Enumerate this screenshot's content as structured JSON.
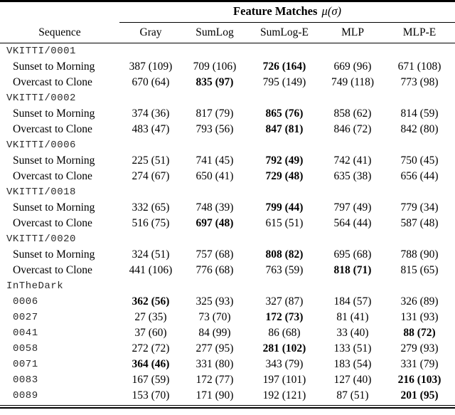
{
  "colors": {
    "background": "#ffffff",
    "text": "#000000",
    "rule": "#000000"
  },
  "table": {
    "group_header": {
      "title": "Feature Matches",
      "math": "μ(σ)"
    },
    "sequence_header": "Sequence",
    "columns": [
      "Gray",
      "SumLog",
      "SumLog-E",
      "MLP",
      "MLP-E"
    ],
    "rows": [
      {
        "kind": "section",
        "label": "VKITTI/0001"
      },
      {
        "kind": "data",
        "label": "Sunset to Morning",
        "mono": false,
        "cells": [
          "387 (109)",
          "709 (106)",
          "726 (164)",
          "669 (96)",
          "671 (108)"
        ],
        "bold": [
          2
        ]
      },
      {
        "kind": "data",
        "label": "Overcast to Clone",
        "mono": false,
        "cells": [
          "670 (64)",
          "835 (97)",
          "795 (149)",
          "749 (118)",
          "773 (98)"
        ],
        "bold": [
          1
        ]
      },
      {
        "kind": "section",
        "label": "VKITTI/0002"
      },
      {
        "kind": "data",
        "label": "Sunset to Morning",
        "mono": false,
        "cells": [
          "374 (36)",
          "817 (79)",
          "865 (76)",
          "858 (62)",
          "814 (59)"
        ],
        "bold": [
          2
        ]
      },
      {
        "kind": "data",
        "label": "Overcast to Clone",
        "mono": false,
        "cells": [
          "483 (47)",
          "793 (56)",
          "847 (81)",
          "846 (72)",
          "842 (80)"
        ],
        "bold": [
          2
        ]
      },
      {
        "kind": "section",
        "label": "VKITTI/0006"
      },
      {
        "kind": "data",
        "label": "Sunset to Morning",
        "mono": false,
        "cells": [
          "225 (51)",
          "741 (45)",
          "792 (49)",
          "742 (41)",
          "750 (45)"
        ],
        "bold": [
          2
        ]
      },
      {
        "kind": "data",
        "label": "Overcast to Clone",
        "mono": false,
        "cells": [
          "274 (67)",
          "650 (41)",
          "729 (48)",
          "635 (38)",
          "656 (44)"
        ],
        "bold": [
          2
        ]
      },
      {
        "kind": "section",
        "label": "VKITTI/0018"
      },
      {
        "kind": "data",
        "label": "Sunset to Morning",
        "mono": false,
        "cells": [
          "332 (65)",
          "748 (39)",
          "799 (44)",
          "797 (49)",
          "779 (34)"
        ],
        "bold": [
          2
        ]
      },
      {
        "kind": "data",
        "label": "Overcast to Clone",
        "mono": false,
        "cells": [
          "516 (75)",
          "697 (48)",
          "615 (51)",
          "564 (44)",
          "587 (48)"
        ],
        "bold": [
          1
        ]
      },
      {
        "kind": "section",
        "label": "VKITTI/0020"
      },
      {
        "kind": "data",
        "label": "Sunset to Morning",
        "mono": false,
        "cells": [
          "324 (51)",
          "757 (68)",
          "808 (82)",
          "695 (68)",
          "788 (90)"
        ],
        "bold": [
          2
        ]
      },
      {
        "kind": "data",
        "label": "Overcast to Clone",
        "mono": false,
        "cells": [
          "441 (106)",
          "776 (68)",
          "763 (59)",
          "818 (71)",
          "815 (65)"
        ],
        "bold": [
          3
        ]
      },
      {
        "kind": "section",
        "label": "InTheDark"
      },
      {
        "kind": "data",
        "label": "0006",
        "mono": true,
        "cells": [
          "362 (56)",
          "325 (93)",
          "327 (87)",
          "184 (57)",
          "326 (89)"
        ],
        "bold": [
          0
        ]
      },
      {
        "kind": "data",
        "label": "0027",
        "mono": true,
        "cells": [
          "27 (35)",
          "73 (70)",
          "172 (73)",
          "81 (41)",
          "131 (93)"
        ],
        "bold": [
          2
        ]
      },
      {
        "kind": "data",
        "label": "0041",
        "mono": true,
        "cells": [
          "37 (60)",
          "84 (99)",
          "86 (68)",
          "33 (40)",
          "88 (72)"
        ],
        "bold": [
          4
        ]
      },
      {
        "kind": "data",
        "label": "0058",
        "mono": true,
        "cells": [
          "272 (72)",
          "277 (95)",
          "281 (102)",
          "133 (51)",
          "279 (93)"
        ],
        "bold": [
          2
        ]
      },
      {
        "kind": "data",
        "label": "0071",
        "mono": true,
        "cells": [
          "364 (46)",
          "331 (80)",
          "343 (79)",
          "183 (54)",
          "331 (79)"
        ],
        "bold": [
          0
        ]
      },
      {
        "kind": "data",
        "label": "0083",
        "mono": true,
        "cells": [
          "167 (59)",
          "172 (77)",
          "197 (101)",
          "127 (40)",
          "216 (103)"
        ],
        "bold": [
          4
        ]
      },
      {
        "kind": "data",
        "label": "0089",
        "mono": true,
        "cells": [
          "153 (70)",
          "171 (90)",
          "192 (121)",
          "87 (51)",
          "201 (95)"
        ],
        "bold": [
          4
        ]
      }
    ]
  }
}
